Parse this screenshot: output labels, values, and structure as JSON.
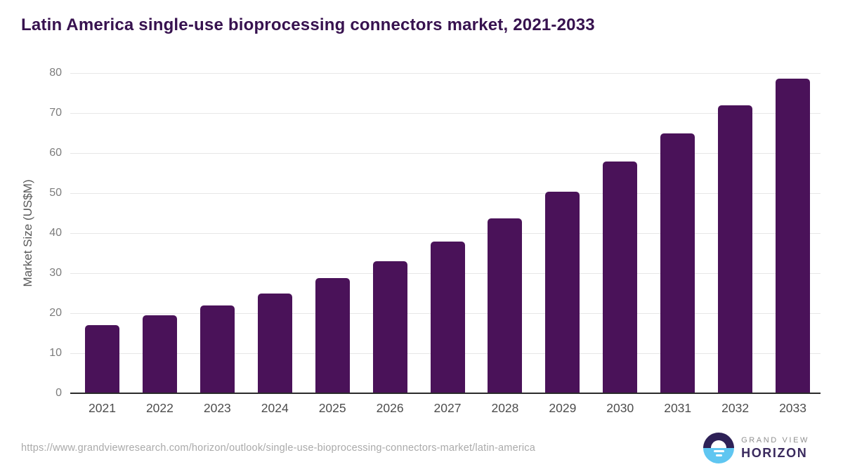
{
  "title": "Latin America single-use bioprocessing connectors market, 2021-2033",
  "chart_data": {
    "type": "bar",
    "title": "Latin America single-use bioprocessing connectors market, 2021-2033",
    "xlabel": "",
    "ylabel": "Market Size (US$M)",
    "categories": [
      "2021",
      "2022",
      "2023",
      "2024",
      "2025",
      "2026",
      "2027",
      "2028",
      "2029",
      "2030",
      "2031",
      "2032",
      "2033"
    ],
    "values": [
      17.1,
      19.4,
      22.0,
      25.0,
      28.8,
      33.0,
      37.9,
      43.6,
      50.3,
      57.9,
      65.0,
      72.0,
      78.6
    ],
    "ylim": [
      0,
      80
    ],
    "yticks": [
      0,
      10,
      20,
      30,
      40,
      50,
      60,
      70,
      80
    ],
    "grid": true,
    "legend": false,
    "bar_color": "#4a1259"
  },
  "footer": {
    "source_url": "https://www.grandviewresearch.com/horizon/outlook/single-use-bioprocessing-connectors-market/latin-america",
    "logo": {
      "top_text": "GRAND VIEW",
      "bottom_text": "HORIZON"
    }
  },
  "colors": {
    "bar": "#4a1259",
    "title": "#37124f",
    "gridline": "#e7e7e7",
    "axis_line": "#2b2b2b",
    "y_tick_label": "#7c7c7c",
    "x_tick_label": "#4d4d4d",
    "axis_title": "#595959",
    "url_text": "#aaaaaa",
    "logo_blue": "#5fc6f1",
    "logo_dark": "#2e2157"
  }
}
